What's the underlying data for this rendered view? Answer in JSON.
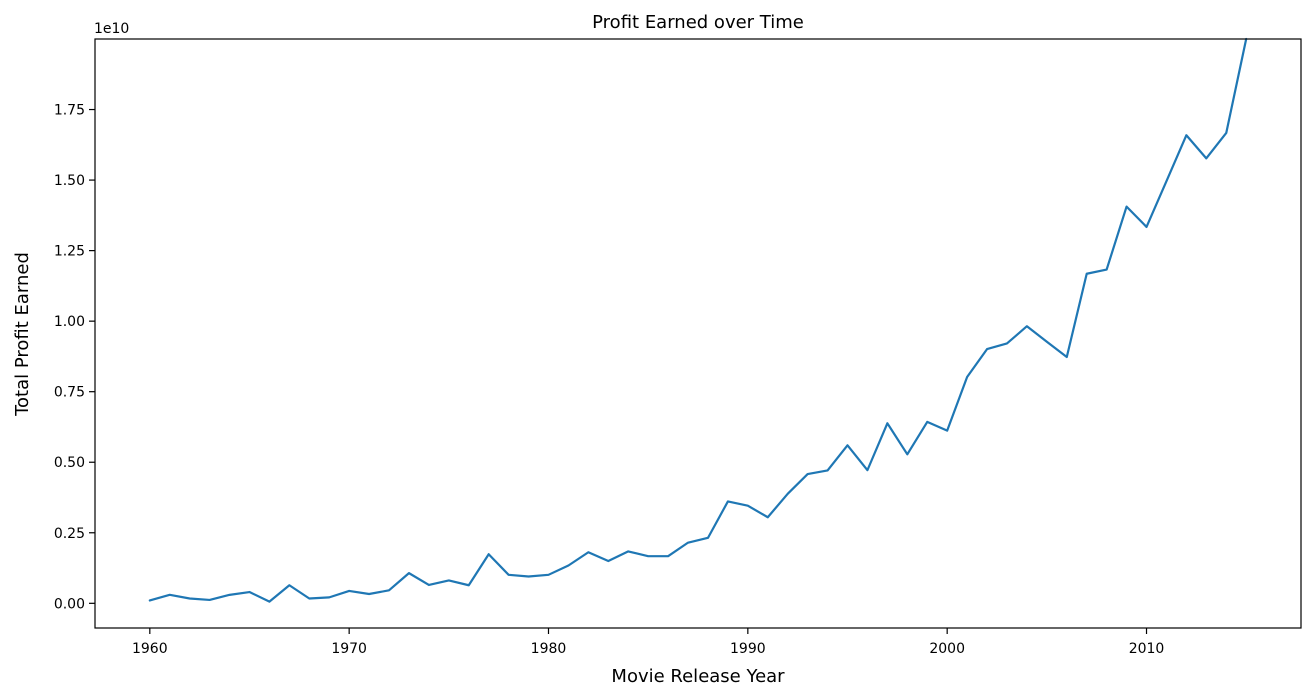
{
  "chart_data": {
    "type": "line",
    "title": "Profit Earned over Time",
    "xlabel": "Movie Release Year",
    "ylabel": "Total Profit Earned",
    "y_offset_label": "1e10",
    "xlim": [
      1957.25,
      2017.75
    ],
    "ylim": [
      -0.0875,
      2.0
    ],
    "y_scale_note": "values in units of 1e10",
    "grid": false,
    "legend": "none",
    "line_color": "#1f77b4",
    "x_ticks": [
      1960,
      1970,
      1980,
      1990,
      2000,
      2010
    ],
    "x_tick_labels": [
      "1960",
      "1970",
      "1980",
      "1990",
      "2000",
      "2010"
    ],
    "y_ticks": [
      0.0,
      0.25,
      0.5,
      0.75,
      1.0,
      1.25,
      1.5,
      1.75
    ],
    "y_tick_labels": [
      "0.00",
      "0.25",
      "0.50",
      "0.75",
      "1.00",
      "1.25",
      "1.50",
      "1.75"
    ],
    "x": [
      1960,
      1961,
      1962,
      1963,
      1964,
      1965,
      1966,
      1967,
      1968,
      1969,
      1970,
      1971,
      1972,
      1973,
      1974,
      1975,
      1976,
      1977,
      1978,
      1979,
      1980,
      1981,
      1982,
      1983,
      1984,
      1985,
      1986,
      1987,
      1988,
      1989,
      1990,
      1991,
      1992,
      1993,
      1994,
      1995,
      1996,
      1997,
      1998,
      1999,
      2000,
      2001,
      2002,
      2003,
      2004,
      2005,
      2006,
      2007,
      2008,
      2009,
      2010,
      2011,
      2012,
      2013,
      2014,
      2015
    ],
    "series": [
      {
        "values": [
          0.01,
          0.03,
          0.017,
          0.012,
          0.03,
          0.04,
          0.006,
          0.064,
          0.017,
          0.021,
          0.044,
          0.033,
          0.046,
          0.107,
          0.065,
          0.081,
          0.064,
          0.174,
          0.101,
          0.095,
          0.101,
          0.134,
          0.181,
          0.15,
          0.184,
          0.167,
          0.167,
          0.215,
          0.232,
          0.361,
          0.346,
          0.305,
          0.388,
          0.458,
          0.471,
          0.56,
          0.472,
          0.638,
          0.528,
          0.643,
          0.612,
          0.802,
          0.901,
          0.921,
          0.982,
          0.927,
          0.873,
          1.168,
          1.183,
          1.406,
          1.334,
          1.496,
          1.659,
          1.577,
          1.667,
          2.0
        ]
      }
    ]
  }
}
